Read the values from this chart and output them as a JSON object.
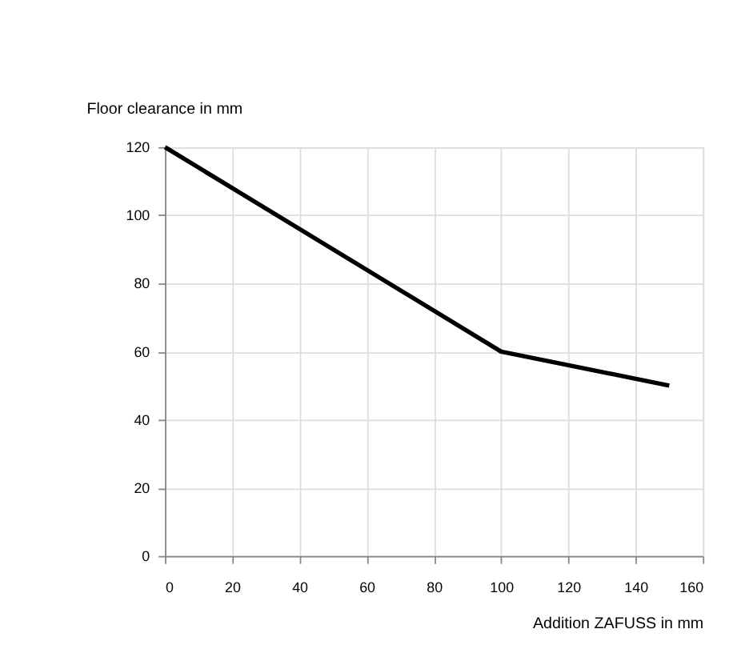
{
  "chart_data": {
    "type": "line",
    "xlabel": "Addition ZAFUSS in mm",
    "ylabel": "Floor clearance in mm",
    "x": [
      0,
      100,
      150
    ],
    "series": [
      {
        "color": "#000000",
        "values": [
          120,
          60,
          50
        ]
      }
    ],
    "xlim": [
      0,
      160
    ],
    "xticks": [
      0,
      20,
      40,
      60,
      80,
      100,
      120,
      140,
      160
    ],
    "ylim": [
      0,
      120
    ],
    "yticks": [
      0,
      20,
      40,
      60,
      80,
      100,
      120
    ],
    "grid": true,
    "marker": "none",
    "line_style": "solid"
  }
}
